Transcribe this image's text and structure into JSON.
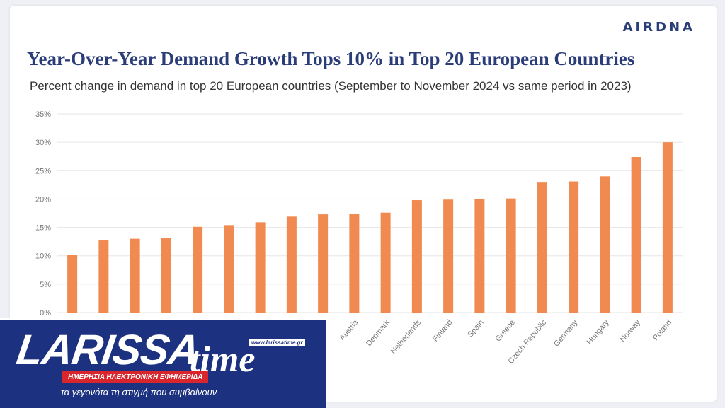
{
  "logo": "AIRDNA",
  "chart_data": {
    "type": "bar",
    "title": "Year-Over-Year Demand Growth Tops 10% in Top 20 European Countries",
    "subtitle": "Percent change in demand in top 20 European countries (September to November 2024 vs same period in 2023)",
    "categories": [
      "",
      "",
      "",
      "",
      "",
      "",
      "",
      "",
      "",
      "Austria",
      "Denmark",
      "Netherlands",
      "Finland",
      "Spain",
      "Greece",
      "Czech Republic",
      "Germany",
      "Hungary",
      "Norway",
      "Poland"
    ],
    "values": [
      10.1,
      12.7,
      13.0,
      13.1,
      15.1,
      15.4,
      15.9,
      16.9,
      17.3,
      17.4,
      17.6,
      19.8,
      19.9,
      20.0,
      20.1,
      22.9,
      23.1,
      24.0,
      27.4,
      30.0
    ],
    "ylim": [
      0,
      35
    ],
    "yticks": [
      "0%",
      "5%",
      "10%",
      "15%",
      "20%",
      "25%",
      "30%",
      "35%"
    ],
    "bar_color": "#f08a50",
    "grid": true
  },
  "overlay": {
    "logo_main": "LARISSA",
    "logo_time": "time",
    "url": "www.larissatime.gr",
    "banner": "ΗΜΕΡΗΣΙΑ ΗΛΕΚΤΡΟΝΙΚΗ ΕΦΗΜΕΡΙΔΑ",
    "tagline": "τα γεγονότα τη στιγμή που συμβαίνουν"
  }
}
